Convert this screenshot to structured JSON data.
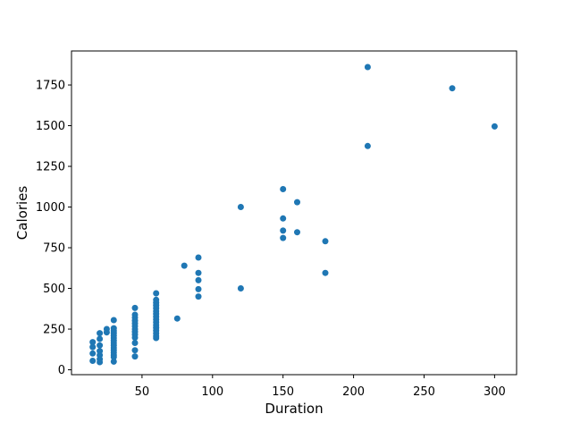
{
  "figure": {
    "background": "#ffffff",
    "title": ""
  },
  "chart_data": {
    "type": "scatter",
    "title": "",
    "xlabel": "Duration",
    "ylabel": "Calories",
    "legend": null,
    "grid": false,
    "marker_color": "#1f77b4",
    "spine_color": "#000000",
    "tick_color": "#000000",
    "xlim": [
      0,
      315.6
    ],
    "ylim": [
      -30,
      1959
    ],
    "x_ticks": [
      50,
      100,
      150,
      200,
      250,
      300
    ],
    "y_ticks": [
      0,
      250,
      500,
      750,
      1000,
      1250,
      1500,
      1750
    ],
    "points": [
      [
        15,
        170
      ],
      [
        15,
        140
      ],
      [
        15,
        100
      ],
      [
        15,
        55
      ],
      [
        20,
        225
      ],
      [
        20,
        190
      ],
      [
        20,
        150
      ],
      [
        20,
        115
      ],
      [
        20,
        90
      ],
      [
        20,
        65
      ],
      [
        20,
        47
      ],
      [
        25,
        250
      ],
      [
        25,
        230
      ],
      [
        30,
        305
      ],
      [
        30,
        255
      ],
      [
        30,
        240
      ],
      [
        30,
        225
      ],
      [
        30,
        210
      ],
      [
        30,
        195
      ],
      [
        30,
        180
      ],
      [
        30,
        165
      ],
      [
        30,
        150
      ],
      [
        30,
        135
      ],
      [
        30,
        120
      ],
      [
        30,
        105
      ],
      [
        30,
        90
      ],
      [
        30,
        78
      ],
      [
        30,
        50
      ],
      [
        45,
        380
      ],
      [
        45,
        338
      ],
      [
        45,
        320
      ],
      [
        45,
        302
      ],
      [
        45,
        285
      ],
      [
        45,
        268
      ],
      [
        45,
        250
      ],
      [
        45,
        233
      ],
      [
        45,
        216
      ],
      [
        45,
        198
      ],
      [
        45,
        165
      ],
      [
        45,
        120
      ],
      [
        45,
        82
      ],
      [
        60,
        470
      ],
      [
        60,
        430
      ],
      [
        60,
        412
      ],
      [
        60,
        395
      ],
      [
        60,
        378
      ],
      [
        60,
        360
      ],
      [
        60,
        343
      ],
      [
        60,
        326
      ],
      [
        60,
        309
      ],
      [
        60,
        292
      ],
      [
        60,
        275
      ],
      [
        60,
        258
      ],
      [
        60,
        241
      ],
      [
        60,
        224
      ],
      [
        60,
        207
      ],
      [
        60,
        195
      ],
      [
        75,
        315
      ],
      [
        80,
        640
      ],
      [
        90,
        690
      ],
      [
        90,
        595
      ],
      [
        90,
        550
      ],
      [
        90,
        495
      ],
      [
        90,
        450
      ],
      [
        120,
        1000
      ],
      [
        120,
        500
      ],
      [
        150,
        1110
      ],
      [
        150,
        930
      ],
      [
        150,
        855
      ],
      [
        150,
        810
      ],
      [
        160,
        1030
      ],
      [
        160,
        845
      ],
      [
        180,
        790
      ],
      [
        180,
        595
      ],
      [
        210,
        1860
      ],
      [
        210,
        1375
      ],
      [
        270,
        1730
      ],
      [
        300,
        1495
      ]
    ]
  }
}
